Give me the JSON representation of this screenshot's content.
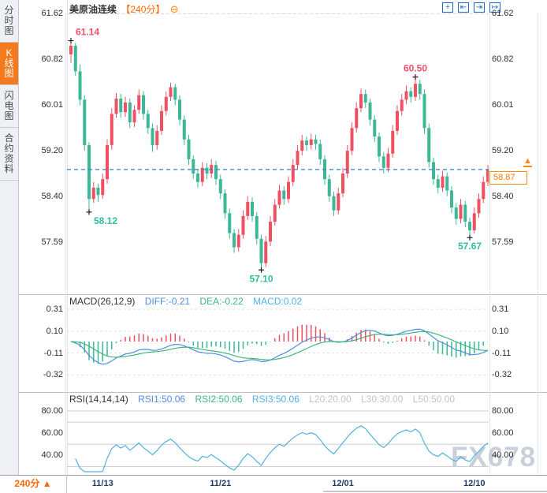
{
  "header": {
    "symbol": "美原油连续",
    "period": "【240分】",
    "zoom_out_icon": "⊖"
  },
  "toolbar": {
    "icons": [
      {
        "name": "crosshair-icon",
        "glyph": "+"
      },
      {
        "name": "scale-left-icon",
        "glyph": "⇤"
      },
      {
        "name": "scale-right-icon",
        "glyph": "⇥"
      },
      {
        "name": "pan-right-icon",
        "glyph": "↦"
      }
    ]
  },
  "sidebar": {
    "items": [
      {
        "label": "分\n时\n图",
        "active": false
      },
      {
        "label": "K\n线\n图",
        "active": true
      },
      {
        "label": "闪\n电\n图",
        "active": false
      },
      {
        "label": "合\n约\n资\n料",
        "active": false
      }
    ]
  },
  "chart_data": {
    "type": "candlestick",
    "symbol": "美原油连续",
    "period": "240分",
    "y_axis": {
      "labels": [
        "61.62",
        "60.82",
        "60.01",
        "59.20",
        "58.40",
        "57.59"
      ],
      "prices": [
        61.62,
        60.82,
        60.01,
        59.2,
        58.4,
        57.59
      ]
    },
    "current_price": "58.87",
    "current_price_value": 58.87,
    "annotations": [
      {
        "text": "61.14",
        "price": 61.14,
        "index": 0,
        "kind": "high"
      },
      {
        "text": "58.12",
        "price": 58.12,
        "index": 4,
        "kind": "low"
      },
      {
        "text": "57.10",
        "price": 57.1,
        "index": 42,
        "kind": "low"
      },
      {
        "text": "60.50",
        "price": 60.5,
        "index": 76,
        "kind": "high"
      },
      {
        "text": "57.67",
        "price": 57.67,
        "index": 88,
        "kind": "low"
      }
    ],
    "x_axis": {
      "dates": [
        {
          "label": "11/13",
          "index": 7
        },
        {
          "label": "11/21",
          "index": 33
        },
        {
          "label": "12/01",
          "index": 60
        },
        {
          "label": "12/10",
          "index": 89
        }
      ]
    },
    "candles": [
      [
        60.9,
        61.14,
        60.75,
        61.05
      ],
      [
        61.05,
        61.1,
        60.52,
        60.6
      ],
      [
        60.6,
        60.72,
        60.0,
        60.1
      ],
      [
        60.1,
        60.18,
        59.2,
        59.3
      ],
      [
        59.3,
        59.35,
        58.12,
        58.35
      ],
      [
        58.35,
        58.65,
        58.28,
        58.55
      ],
      [
        58.55,
        58.62,
        58.3,
        58.42
      ],
      [
        58.42,
        58.8,
        58.35,
        58.7
      ],
      [
        58.7,
        59.4,
        58.62,
        59.3
      ],
      [
        59.3,
        59.95,
        59.22,
        59.85
      ],
      [
        59.85,
        60.22,
        59.78,
        60.12
      ],
      [
        60.12,
        60.2,
        59.78,
        59.88
      ],
      [
        59.88,
        60.15,
        59.8,
        60.05
      ],
      [
        60.05,
        60.12,
        59.6,
        59.7
      ],
      [
        59.7,
        60.0,
        59.62,
        59.92
      ],
      [
        59.92,
        60.28,
        59.85,
        60.18
      ],
      [
        60.18,
        60.25,
        59.75,
        59.85
      ],
      [
        59.85,
        59.92,
        59.5,
        59.6
      ],
      [
        59.6,
        59.68,
        59.18,
        59.3
      ],
      [
        59.3,
        59.65,
        59.22,
        59.55
      ],
      [
        59.55,
        60.0,
        59.48,
        59.9
      ],
      [
        59.9,
        60.25,
        59.82,
        60.15
      ],
      [
        60.15,
        60.4,
        60.08,
        60.32
      ],
      [
        60.32,
        60.38,
        60.0,
        60.1
      ],
      [
        60.1,
        60.18,
        59.65,
        59.75
      ],
      [
        59.75,
        59.82,
        59.3,
        59.4
      ],
      [
        59.4,
        59.48,
        58.95,
        59.05
      ],
      [
        59.05,
        59.12,
        58.7,
        58.8
      ],
      [
        58.8,
        58.88,
        58.55,
        58.65
      ],
      [
        58.65,
        59.0,
        58.58,
        58.9
      ],
      [
        58.9,
        58.98,
        58.7,
        58.8
      ],
      [
        58.8,
        59.05,
        58.72,
        58.95
      ],
      [
        58.95,
        59.02,
        58.6,
        58.7
      ],
      [
        58.7,
        58.78,
        58.35,
        58.45
      ],
      [
        58.45,
        58.52,
        58.0,
        58.1
      ],
      [
        58.1,
        58.18,
        57.65,
        57.75
      ],
      [
        57.75,
        57.82,
        57.4,
        57.5
      ],
      [
        57.5,
        57.82,
        57.42,
        57.72
      ],
      [
        57.72,
        58.15,
        57.65,
        58.05
      ],
      [
        58.05,
        58.4,
        57.98,
        58.3
      ],
      [
        58.3,
        58.38,
        57.95,
        58.05
      ],
      [
        58.05,
        58.12,
        57.55,
        57.65
      ],
      [
        57.65,
        57.72,
        57.1,
        57.22
      ],
      [
        57.22,
        57.7,
        57.15,
        57.6
      ],
      [
        57.6,
        58.05,
        57.52,
        57.95
      ],
      [
        57.95,
        58.35,
        57.88,
        58.25
      ],
      [
        58.25,
        58.6,
        58.18,
        58.5
      ],
      [
        58.5,
        58.58,
        58.25,
        58.35
      ],
      [
        58.35,
        58.75,
        58.28,
        58.65
      ],
      [
        58.65,
        59.05,
        58.58,
        58.95
      ],
      [
        58.95,
        59.3,
        58.88,
        59.2
      ],
      [
        59.2,
        59.48,
        59.12,
        59.38
      ],
      [
        59.38,
        59.45,
        59.2,
        59.3
      ],
      [
        59.3,
        59.5,
        59.22,
        59.4
      ],
      [
        59.4,
        59.48,
        59.22,
        59.32
      ],
      [
        59.32,
        59.4,
        58.95,
        59.05
      ],
      [
        59.05,
        59.12,
        58.6,
        58.7
      ],
      [
        58.7,
        58.78,
        58.3,
        58.4
      ],
      [
        58.4,
        58.48,
        58.05,
        58.15
      ],
      [
        58.15,
        58.55,
        58.08,
        58.45
      ],
      [
        58.45,
        58.9,
        58.38,
        58.8
      ],
      [
        58.8,
        59.3,
        58.72,
        59.2
      ],
      [
        59.2,
        59.7,
        59.12,
        59.6
      ],
      [
        59.6,
        60.05,
        59.52,
        59.95
      ],
      [
        59.95,
        60.3,
        59.88,
        60.2
      ],
      [
        60.2,
        60.28,
        59.95,
        60.05
      ],
      [
        60.05,
        60.12,
        59.65,
        59.75
      ],
      [
        59.75,
        59.82,
        59.35,
        59.45
      ],
      [
        59.45,
        59.52,
        59.0,
        59.1
      ],
      [
        59.1,
        59.18,
        58.8,
        58.9
      ],
      [
        58.9,
        59.25,
        58.82,
        59.15
      ],
      [
        59.15,
        59.65,
        59.08,
        59.55
      ],
      [
        59.55,
        60.0,
        59.48,
        59.9
      ],
      [
        59.9,
        60.2,
        59.82,
        60.1
      ],
      [
        60.1,
        60.35,
        60.02,
        60.25
      ],
      [
        60.25,
        60.32,
        60.05,
        60.15
      ],
      [
        60.15,
        60.5,
        60.08,
        60.38
      ],
      [
        60.38,
        60.45,
        60.1,
        60.2
      ],
      [
        60.2,
        60.28,
        59.5,
        59.6
      ],
      [
        59.6,
        59.68,
        58.9,
        59.0
      ],
      [
        59.0,
        59.08,
        58.6,
        58.7
      ],
      [
        58.7,
        58.78,
        58.45,
        58.55
      ],
      [
        58.55,
        58.85,
        58.48,
        58.75
      ],
      [
        58.75,
        58.82,
        58.4,
        58.5
      ],
      [
        58.5,
        58.58,
        58.1,
        58.2
      ],
      [
        58.2,
        58.28,
        57.9,
        58.0
      ],
      [
        58.0,
        58.35,
        57.92,
        58.25
      ],
      [
        58.25,
        58.32,
        57.85,
        57.95
      ],
      [
        57.95,
        58.02,
        57.67,
        57.8
      ],
      [
        57.8,
        58.2,
        57.74,
        58.1
      ],
      [
        58.1,
        58.45,
        58.02,
        58.35
      ],
      [
        58.35,
        58.75,
        58.28,
        58.65
      ],
      [
        58.65,
        58.95,
        58.58,
        58.87
      ]
    ],
    "macd": {
      "title": "MACD(26,12,9)",
      "diff_label": "DIFF:-0.21",
      "dea_label": "DEA:-0.22",
      "macd_label": "MACD:0.02",
      "diff": -0.21,
      "dea": -0.22,
      "macd": 0.02,
      "axis_labels": [
        "0.31",
        "0.10",
        "-0.11",
        "-0.32"
      ],
      "axis_values": [
        0.31,
        0.1,
        -0.11,
        -0.32
      ]
    },
    "rsi": {
      "title": "RSI(14,14,14)",
      "rsi1_label": "RSI1:50.06",
      "rsi2_label": "RSI2:50.06",
      "rsi3_label": "RSI3:50.06",
      "l20_label": "L20:20.00",
      "l30_label": "L30:30.00",
      "l50_label": "L50:50.00",
      "rsi1": 50.06,
      "rsi2": 50.06,
      "rsi3": 50.06,
      "axis_labels": [
        "80.00",
        "60.00",
        "40.00"
      ],
      "axis_values": [
        80,
        60,
        40
      ],
      "grid_levels": [
        80,
        70,
        50,
        30
      ]
    }
  },
  "footer": {
    "period": "240分 ▲"
  },
  "watermark": "FX678",
  "colors": {
    "up": "#ef5162",
    "down": "#3cb896",
    "current_line": "#2e7fd6",
    "accent_orange": "#ff6600",
    "diff_line": "#4f8fdd",
    "dea_line": "#3cb87d",
    "rsi_line": "#4fb2da",
    "ann_high": "#f0506e",
    "ann_low": "#2fbe9e"
  }
}
